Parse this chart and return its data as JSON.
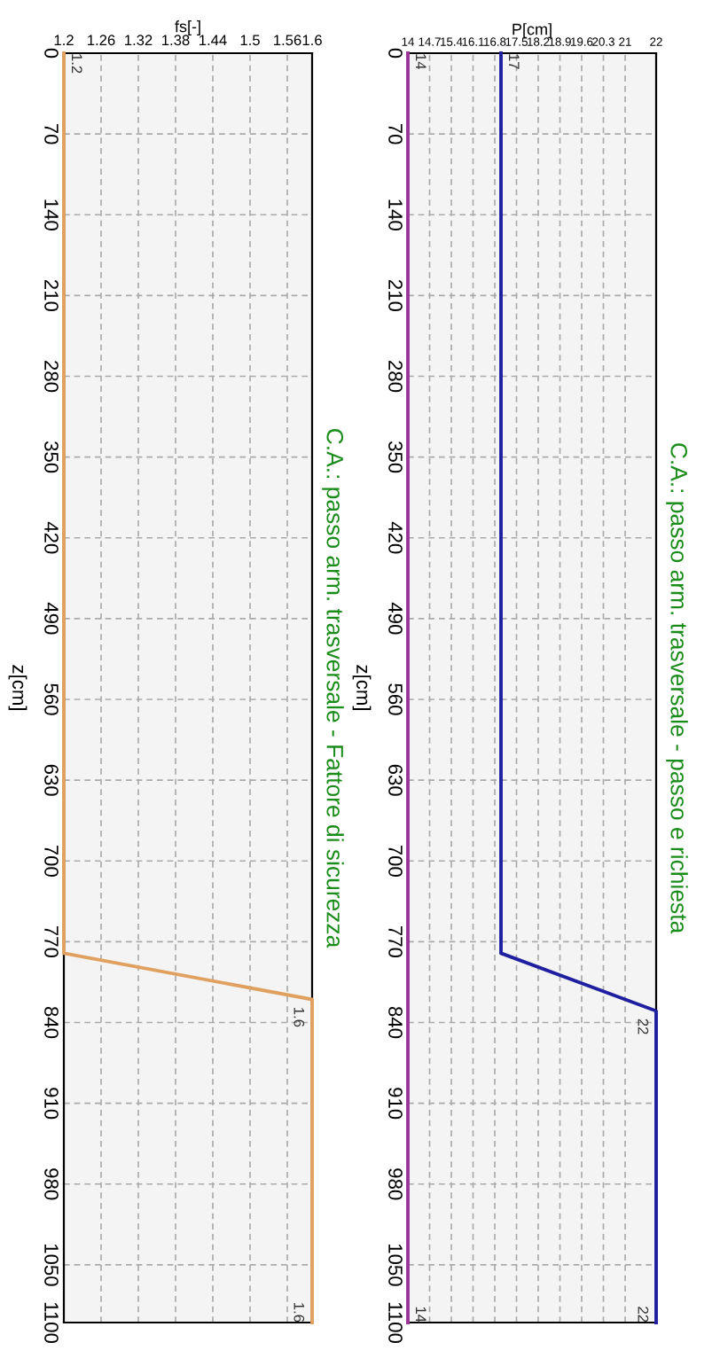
{
  "chart_data": [
    {
      "type": "line",
      "orientation": "horizontal",
      "title": "C.A.: passo arm. trasversale - Fattore di sicurezza",
      "xlabel": "fs[-]",
      "ylabel": "z[cm]",
      "xlim": [
        1.2,
        1.6
      ],
      "xticks": [
        1.2,
        1.26,
        1.32,
        1.38,
        1.44,
        1.5,
        1.56,
        1.6
      ],
      "ylim": [
        1100,
        0
      ],
      "yticks": [
        0,
        70,
        140,
        210,
        280,
        350,
        420,
        490,
        560,
        630,
        700,
        770,
        840,
        910,
        980,
        1050,
        1100
      ],
      "grid": true,
      "series": [
        {
          "color": "#e0a060",
          "x": [
            0,
            780,
            820,
            1100
          ],
          "values": [
            1.2,
            1.2,
            1.6,
            1.6
          ],
          "value_labels": [
            "1.2",
            null,
            "1.6",
            "1.6"
          ]
        }
      ]
    },
    {
      "type": "line",
      "orientation": "horizontal",
      "title": "C.A.: passo arm. trasversale - passo e richiesta",
      "xlabel": "P[cm]",
      "ylabel": "z[cm]",
      "xlim": [
        14,
        22
      ],
      "xticks": [
        14,
        14.7,
        15.4,
        16.1,
        16.8,
        17.5,
        18.2,
        18.9,
        19.6,
        20.3,
        21,
        22
      ],
      "ylim": [
        1100,
        0
      ],
      "yticks": [
        0,
        70,
        140,
        210,
        280,
        350,
        420,
        490,
        560,
        630,
        700,
        770,
        840,
        910,
        980,
        1050,
        1100
      ],
      "grid": true,
      "series": [
        {
          "color": "#993399",
          "x": [
            0,
            1100
          ],
          "values": [
            14,
            14
          ],
          "value_labels": [
            "14",
            "14"
          ]
        },
        {
          "color": "#1f1fa0",
          "x": [
            0,
            780,
            830,
            1100
          ],
          "values": [
            17,
            17,
            22,
            22
          ],
          "value_labels": [
            "17",
            null,
            "22",
            "22"
          ]
        }
      ]
    }
  ]
}
